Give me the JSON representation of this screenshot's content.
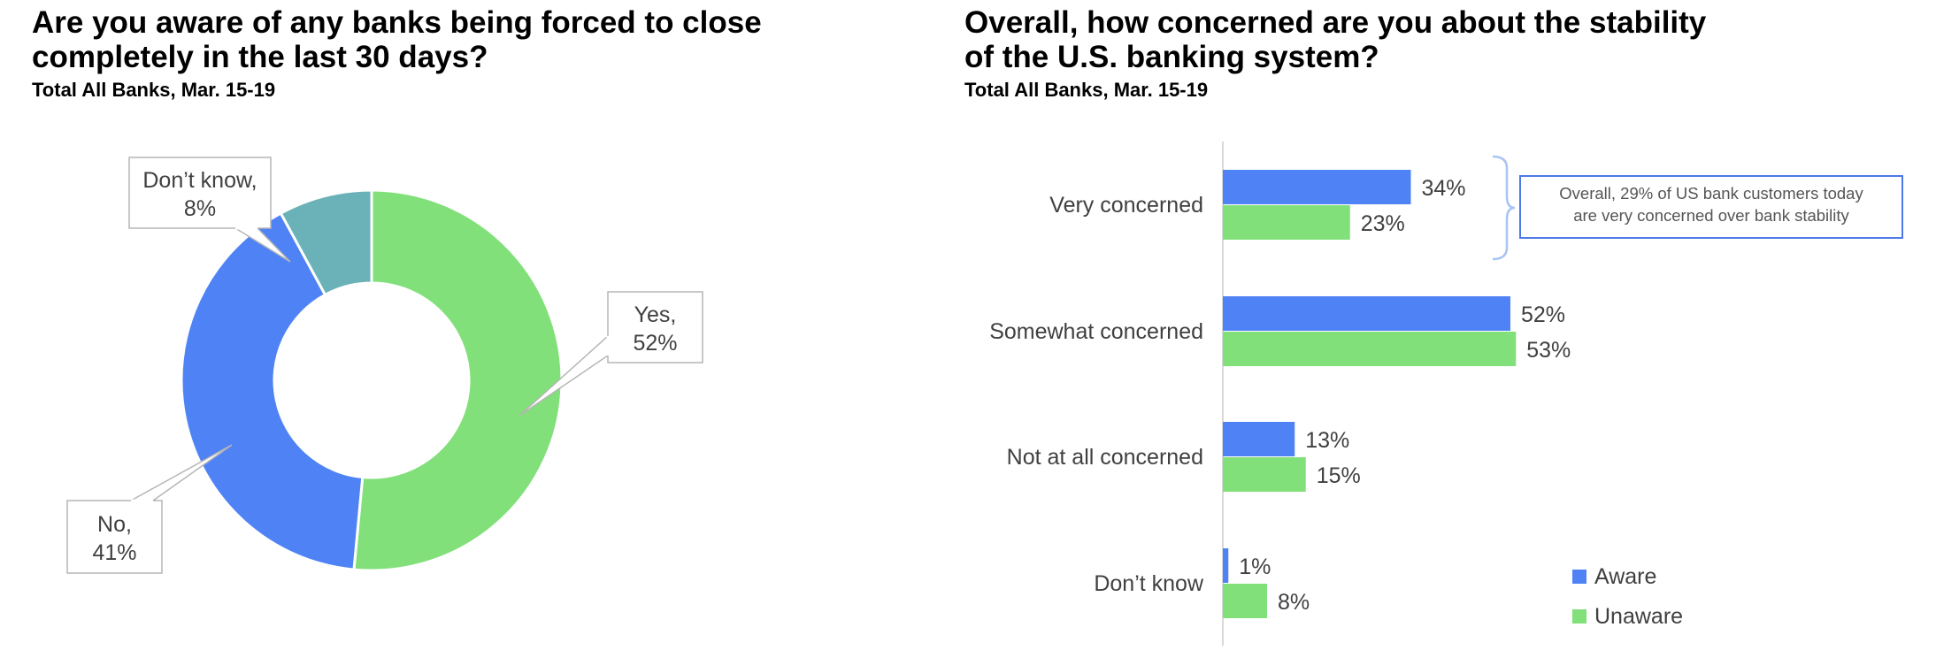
{
  "left": {
    "title_line1": "Are you aware of any banks being forced to close",
    "title_line2": "completely in the last 30 days?",
    "subtitle": "Total All Banks, Mar. 15-19"
  },
  "right": {
    "title_line1": "Overall, how concerned are you about the stability",
    "title_line2": "of the U.S. banking system?",
    "subtitle": "Total All Banks, Mar. 15-19",
    "callout_line1": "Overall, 29% of US bank customers today",
    "callout_line2": "are very concerned over bank stability"
  },
  "colors": {
    "green": "#82e07a",
    "blue": "#4f83f5",
    "teal": "#6ab2b8",
    "callout": "#4d79e8"
  },
  "chart_data": [
    {
      "type": "pie",
      "title": "Are you aware of any banks being forced to close completely in the last 30 days?",
      "subtitle": "Total All Banks, Mar. 15-19",
      "slices": [
        {
          "label": "Yes",
          "value": 52,
          "label_text": "Yes,\n52%",
          "color": "#82e07a"
        },
        {
          "label": "No",
          "value": 41,
          "label_text": "No,\n41%",
          "color": "#4f83f5"
        },
        {
          "label": "Don't know",
          "value": 8,
          "label_text": "Don’t know,\n8%",
          "color": "#6ab2b8"
        }
      ],
      "donut": true
    },
    {
      "type": "bar",
      "orientation": "horizontal",
      "title": "Overall, how concerned are you about the stability of the U.S. banking system?",
      "subtitle": "Total All Banks, Mar. 15-19",
      "categories": [
        "Very concerned",
        "Somewhat concerned",
        "Not at all concerned",
        "Don't know"
      ],
      "category_labels": [
        "Very concerned",
        "Somewhat concerned",
        "Not at all concerned",
        "Don’t know"
      ],
      "series": [
        {
          "name": "Aware",
          "values": [
            34,
            52,
            13,
            1
          ],
          "color": "#4f83f5"
        },
        {
          "name": "Unaware",
          "values": [
            23,
            53,
            15,
            8
          ],
          "color": "#82e07a"
        }
      ],
      "value_suffix": "%",
      "xlim": [
        0,
        100
      ],
      "legend": "bottom-right",
      "annotation": "Overall, 29% of US bank customers today are very concerned over bank stability"
    }
  ]
}
